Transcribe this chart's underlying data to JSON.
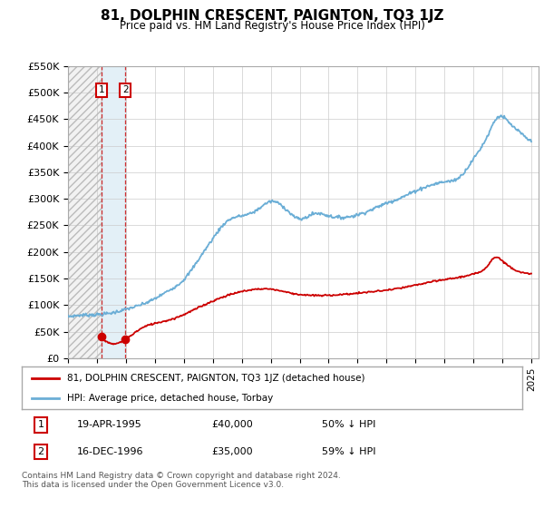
{
  "title": "81, DOLPHIN CRESCENT, PAIGNTON, TQ3 1JZ",
  "subtitle": "Price paid vs. HM Land Registry's House Price Index (HPI)",
  "ylim": [
    0,
    550000
  ],
  "yticks": [
    0,
    50000,
    100000,
    150000,
    200000,
    250000,
    300000,
    350000,
    400000,
    450000,
    500000,
    550000
  ],
  "ytick_labels": [
    "£0",
    "£50K",
    "£100K",
    "£150K",
    "£200K",
    "£250K",
    "£300K",
    "£350K",
    "£400K",
    "£450K",
    "£500K",
    "£550K"
  ],
  "xlim_start": 1993.0,
  "xlim_end": 2025.5,
  "hpi_color": "#6baed6",
  "price_color": "#cc0000",
  "transaction1_date": 1995.3,
  "transaction1_price": 40000,
  "transaction2_date": 1996.95,
  "transaction2_price": 35000,
  "legend_line1": "81, DOLPHIN CRESCENT, PAIGNTON, TQ3 1JZ (detached house)",
  "legend_line2": "HPI: Average price, detached house, Torbay",
  "table_row1": [
    "1",
    "19-APR-1995",
    "£40,000",
    "50% ↓ HPI"
  ],
  "table_row2": [
    "2",
    "16-DEC-1996",
    "£35,000",
    "59% ↓ HPI"
  ],
  "footer": "Contains HM Land Registry data © Crown copyright and database right 2024.\nThis data is licensed under the Open Government Licence v3.0.",
  "background_color": "#ffffff",
  "grid_color": "#cccccc",
  "hpi_keypoints": [
    [
      1993.0,
      78000
    ],
    [
      1995.0,
      82000
    ],
    [
      1996.0,
      85000
    ],
    [
      1997.0,
      92000
    ],
    [
      1998.0,
      100000
    ],
    [
      1999.0,
      112000
    ],
    [
      2000.0,
      128000
    ],
    [
      2001.0,
      148000
    ],
    [
      2002.0,
      185000
    ],
    [
      2003.0,
      225000
    ],
    [
      2004.0,
      258000
    ],
    [
      2005.0,
      268000
    ],
    [
      2006.0,
      278000
    ],
    [
      2007.0,
      295000
    ],
    [
      2008.0,
      282000
    ],
    [
      2009.0,
      262000
    ],
    [
      2010.0,
      272000
    ],
    [
      2011.0,
      268000
    ],
    [
      2012.0,
      265000
    ],
    [
      2013.0,
      270000
    ],
    [
      2014.0,
      280000
    ],
    [
      2015.0,
      292000
    ],
    [
      2016.0,
      302000
    ],
    [
      2017.0,
      315000
    ],
    [
      2018.0,
      325000
    ],
    [
      2019.0,
      332000
    ],
    [
      2020.0,
      340000
    ],
    [
      2021.0,
      375000
    ],
    [
      2022.0,
      420000
    ],
    [
      2022.5,
      448000
    ],
    [
      2023.0,
      455000
    ],
    [
      2023.5,
      442000
    ],
    [
      2024.0,
      430000
    ],
    [
      2024.5,
      418000
    ],
    [
      2025.0,
      408000
    ]
  ],
  "pp_keypoints": [
    [
      1995.3,
      40000
    ],
    [
      1996.95,
      35000
    ],
    [
      1998.0,
      55000
    ],
    [
      2000.0,
      72000
    ],
    [
      2002.0,
      95000
    ],
    [
      2004.0,
      118000
    ],
    [
      2005.5,
      128000
    ],
    [
      2007.0,
      130000
    ],
    [
      2008.5,
      122000
    ],
    [
      2010.0,
      118000
    ],
    [
      2012.0,
      120000
    ],
    [
      2014.0,
      125000
    ],
    [
      2016.0,
      132000
    ],
    [
      2018.0,
      143000
    ],
    [
      2019.5,
      150000
    ],
    [
      2021.0,
      158000
    ],
    [
      2022.0,
      175000
    ],
    [
      2022.5,
      190000
    ],
    [
      2023.0,
      183000
    ],
    [
      2024.0,
      165000
    ],
    [
      2025.0,
      158000
    ]
  ]
}
